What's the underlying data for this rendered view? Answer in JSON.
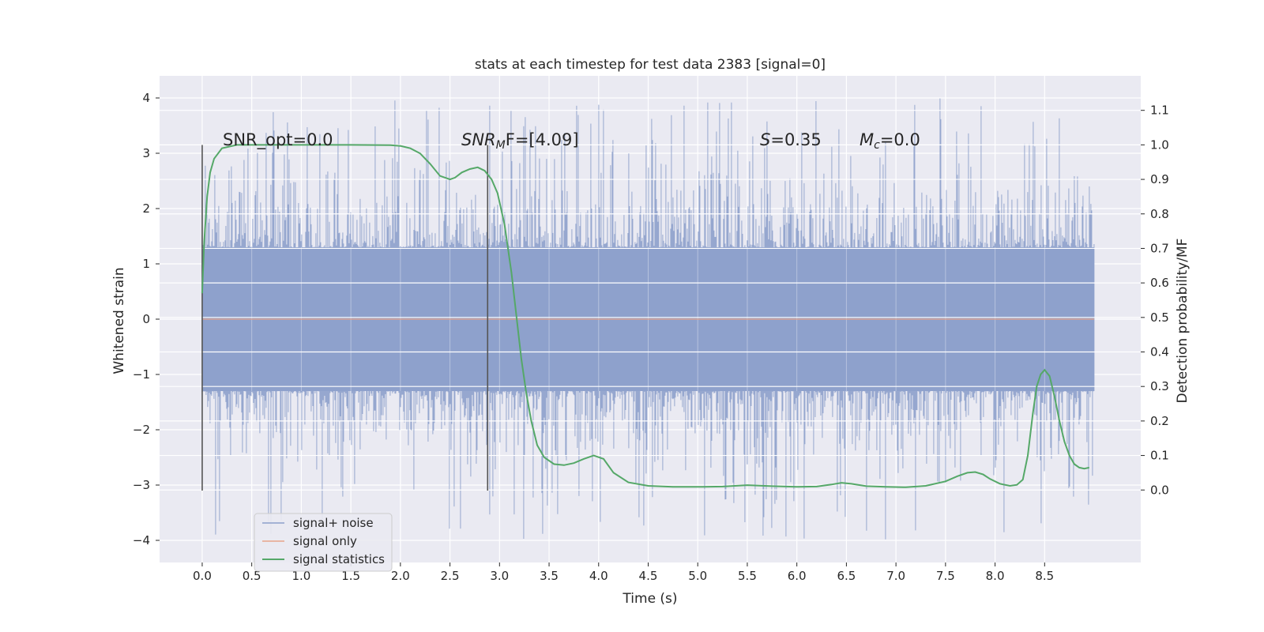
{
  "chart_data": {
    "type": "line",
    "title": "stats at each timestep for test data 2383 [signal=0]",
    "xlabel": "Time (s)",
    "ylabel": "Whitened strain",
    "y2label": "Detection probability/MF",
    "xlim": [
      -0.43,
      9.47
    ],
    "ylim": [
      -4.4,
      4.4
    ],
    "y2lim": [
      -0.21,
      1.2
    ],
    "x_ticks": [
      0.0,
      0.5,
      1.0,
      1.5,
      2.0,
      2.5,
      3.0,
      3.5,
      4.0,
      4.5,
      5.0,
      5.5,
      6.0,
      6.5,
      7.0,
      7.5,
      8.0,
      8.5
    ],
    "x_tick_labels": [
      "0.0",
      "0.5",
      "1.0",
      "1.5",
      "2.0",
      "2.5",
      "3.0",
      "3.5",
      "4.0",
      "4.5",
      "5.0",
      "5.5",
      "6.0",
      "6.5",
      "7.0",
      "7.5",
      "8.0",
      "8.5"
    ],
    "y_ticks": [
      4,
      3,
      2,
      1,
      0,
      -1,
      -2,
      -3,
      -4
    ],
    "y_tick_labels": [
      "4",
      "3",
      "2",
      "1",
      "0",
      "−1",
      "−2",
      "−3",
      "−4"
    ],
    "y2_ticks": [
      1.1,
      1.0,
      0.9,
      0.8,
      0.7,
      0.6,
      0.5,
      0.4,
      0.3,
      0.2,
      0.1,
      0.0
    ],
    "y2_tick_labels": [
      "1.1",
      "1.0",
      "0.9",
      "0.8",
      "0.7",
      "0.6",
      "0.5",
      "0.4",
      "0.3",
      "0.2",
      "0.1",
      "0.0"
    ],
    "grid": true,
    "legend_position": "bottom-left",
    "legend": [
      {
        "label": "signal+ noise",
        "color": "#8da0cb"
      },
      {
        "label": "signal only",
        "color": "#e8a489"
      },
      {
        "label": "signal statistics",
        "color": "#55a868"
      }
    ],
    "noise_series": {
      "name": "signal+ noise",
      "color": "#8da0cb",
      "x_range": [
        0.0,
        9.0
      ],
      "typical_amplitude": 1.3,
      "max_value": 4.0,
      "min_value": -4.0
    },
    "signal_only_series": {
      "name": "signal only",
      "color": "#e8a489",
      "values_constant": 0.0
    },
    "statistics_series": {
      "name": "signal statistics",
      "color": "#55a868",
      "x": [
        0.0,
        0.02,
        0.05,
        0.08,
        0.12,
        0.2,
        0.35,
        0.6,
        1.0,
        1.5,
        1.9,
        2.0,
        2.1,
        2.2,
        2.3,
        2.4,
        2.5,
        2.55,
        2.62,
        2.7,
        2.78,
        2.85,
        2.92,
        2.98,
        3.05,
        3.12,
        3.18,
        3.22,
        3.27,
        3.32,
        3.38,
        3.45,
        3.55,
        3.65,
        3.75,
        3.85,
        3.95,
        4.05,
        4.15,
        4.3,
        4.5,
        4.75,
        5.0,
        5.25,
        5.5,
        5.75,
        6.0,
        6.2,
        6.35,
        6.45,
        6.55,
        6.7,
        6.9,
        7.1,
        7.3,
        7.5,
        7.62,
        7.72,
        7.8,
        7.88,
        7.95,
        8.05,
        8.15,
        8.22,
        8.28,
        8.33,
        8.38,
        8.42,
        8.46,
        8.5,
        8.55,
        8.6,
        8.65,
        8.7,
        8.75,
        8.8,
        8.85,
        8.9,
        8.95
      ],
      "values": [
        0.57,
        0.72,
        0.85,
        0.92,
        0.96,
        0.99,
        1.0,
        1.0,
        1.0,
        1.0,
        0.999,
        0.997,
        0.99,
        0.975,
        0.945,
        0.91,
        0.9,
        0.905,
        0.92,
        0.93,
        0.935,
        0.925,
        0.9,
        0.86,
        0.77,
        0.63,
        0.48,
        0.38,
        0.28,
        0.2,
        0.13,
        0.095,
        0.075,
        0.072,
        0.078,
        0.09,
        0.1,
        0.09,
        0.05,
        0.022,
        0.012,
        0.009,
        0.009,
        0.01,
        0.014,
        0.011,
        0.009,
        0.01,
        0.016,
        0.021,
        0.018,
        0.011,
        0.009,
        0.008,
        0.012,
        0.025,
        0.04,
        0.05,
        0.052,
        0.045,
        0.032,
        0.018,
        0.012,
        0.015,
        0.03,
        0.1,
        0.22,
        0.3,
        0.335,
        0.348,
        0.33,
        0.27,
        0.2,
        0.14,
        0.1,
        0.075,
        0.065,
        0.062,
        0.065
      ]
    },
    "vertical_markers": [
      {
        "x": 0.0,
        "y_from": -3.1,
        "y_to": 3.15,
        "color": "#555555"
      },
      {
        "x": 2.88,
        "y_from": -3.1,
        "y_to": 3.15,
        "color": "#555555"
      }
    ],
    "annotations": [
      {
        "text": "SNR_opt=0.0",
        "x": 0.2,
        "y": 3.15
      },
      {
        "text_main": "SNR",
        "text_sub": "M",
        "text_rest": "F=[4.09]",
        "x": 2.6,
        "y": 3.15
      },
      {
        "text_main": "S",
        "text_rest": "=0.35",
        "x": 5.6,
        "y": 3.15
      },
      {
        "text_main": "M",
        "text_sub": "c",
        "text_rest": "=0.0",
        "x": 6.6,
        "y": 3.15
      }
    ]
  }
}
